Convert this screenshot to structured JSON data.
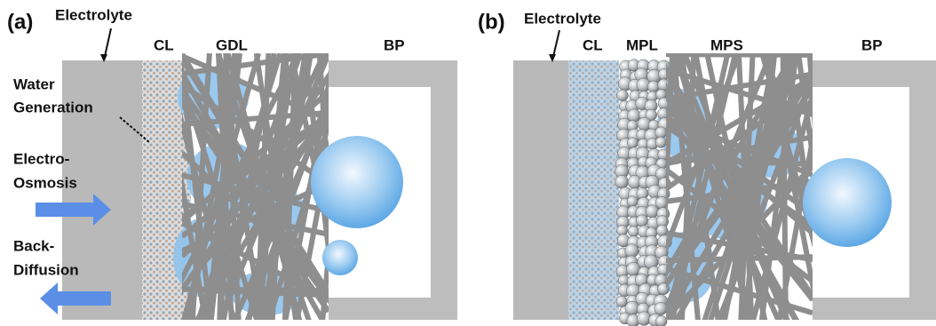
{
  "panel_a": {
    "label": "(a)",
    "electrolyte": "Electrolyte",
    "layers": [
      "CL",
      "GDL",
      "BP"
    ],
    "water_generation": [
      "Water",
      "Generation"
    ],
    "electro_osmosis": [
      "Electro-",
      "Osmosis"
    ],
    "back_diffusion": [
      "Back-",
      "Diffusion"
    ]
  },
  "panel_b": {
    "label": "(b)",
    "electrolyte": "Electrolyte",
    "layers": [
      "CL",
      "MPL",
      "MPS",
      "BP"
    ]
  }
}
